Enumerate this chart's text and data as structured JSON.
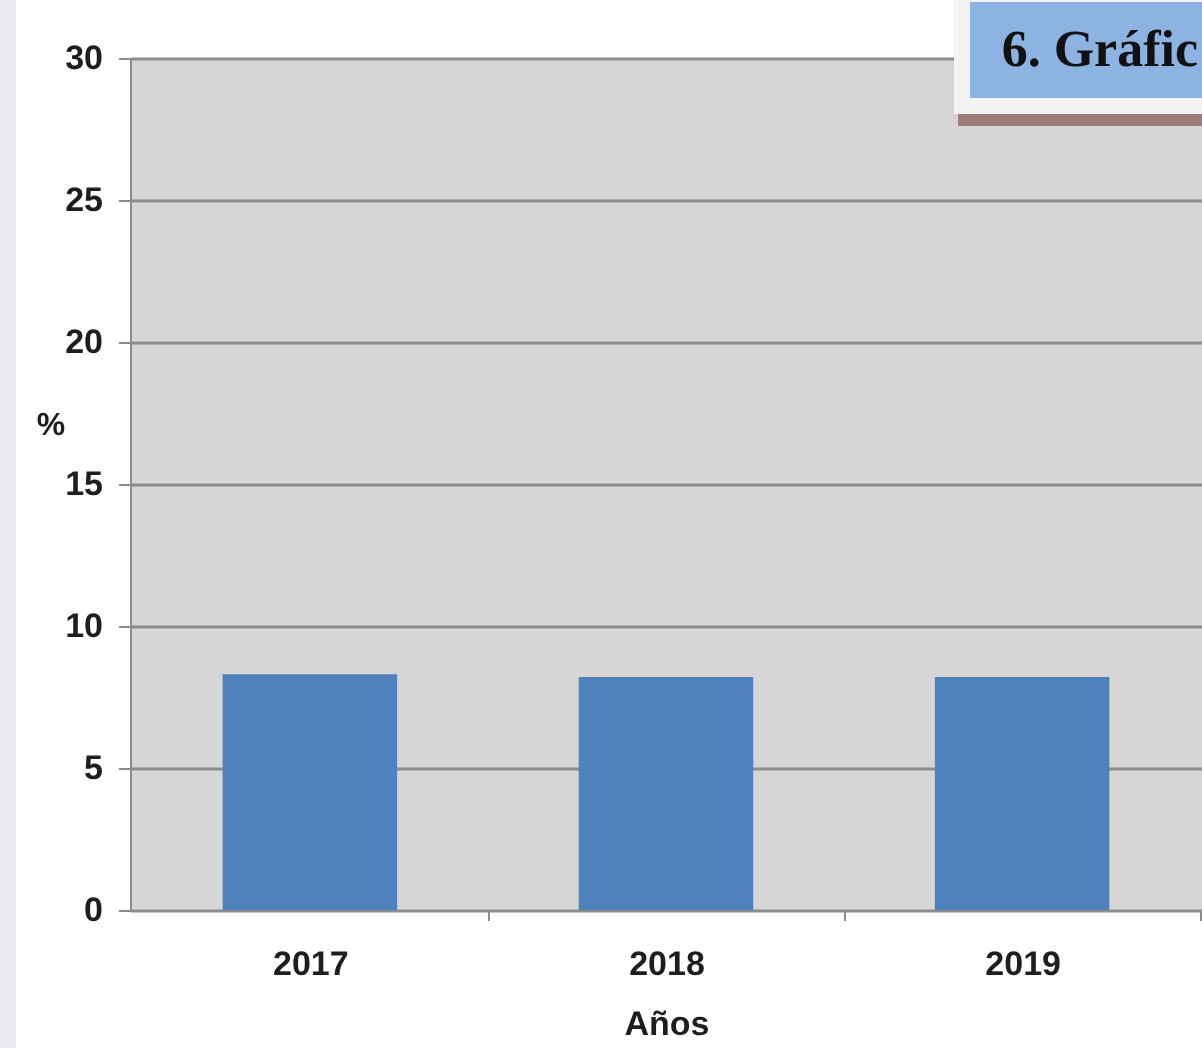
{
  "chart_data": {
    "type": "bar",
    "title": "6. Gráfic",
    "xlabel": "Años",
    "ylabel": "%",
    "categories": [
      "2017",
      "2018",
      "2019"
    ],
    "values": [
      8.3,
      8.2,
      8.2
    ],
    "color": "#4f81bd",
    "ylim": [
      0,
      30
    ],
    "yticks": [
      0,
      5,
      10,
      15,
      20,
      25,
      30
    ],
    "grid": "y"
  }
}
